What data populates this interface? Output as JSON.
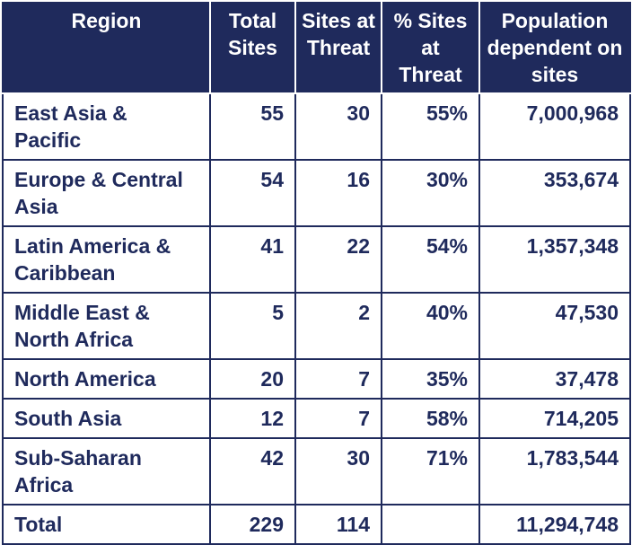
{
  "table": {
    "headers": {
      "region": "Region",
      "total_sites": "Total Sites",
      "sites_at_threat": "Sites at Threat",
      "pct_at_threat": "% Sites at Threat",
      "population": "Population dependent on sites"
    },
    "rows": [
      {
        "region": "East Asia & Pacific",
        "total_sites": "55",
        "sites_at_threat": "30",
        "pct_at_threat": "55%",
        "population": "7,000,968"
      },
      {
        "region": "Europe & Central Asia",
        "total_sites": "54",
        "sites_at_threat": "16",
        "pct_at_threat": "30%",
        "population": "353,674"
      },
      {
        "region": "Latin America & Caribbean",
        "total_sites": "41",
        "sites_at_threat": "22",
        "pct_at_threat": "54%",
        "population": "1,357,348"
      },
      {
        "region": "Middle East & North Africa",
        "total_sites": "5",
        "sites_at_threat": "2",
        "pct_at_threat": "40%",
        "population": "47,530"
      },
      {
        "region": "North America",
        "total_sites": "20",
        "sites_at_threat": "7",
        "pct_at_threat": "35%",
        "population": "37,478"
      },
      {
        "region": "South Asia",
        "total_sites": "12",
        "sites_at_threat": "7",
        "pct_at_threat": "58%",
        "population": "714,205"
      },
      {
        "region": "Sub-Saharan Africa",
        "total_sites": "42",
        "sites_at_threat": "30",
        "pct_at_threat": "71%",
        "population": "1,783,544"
      },
      {
        "region": "Total",
        "total_sites": "229",
        "sites_at_threat": "114",
        "pct_at_threat": "",
        "population": "11,294,748"
      }
    ]
  },
  "colors": {
    "header_bg": "#1f2a5c",
    "header_text": "#ffffff",
    "body_text": "#1f2a5c"
  }
}
